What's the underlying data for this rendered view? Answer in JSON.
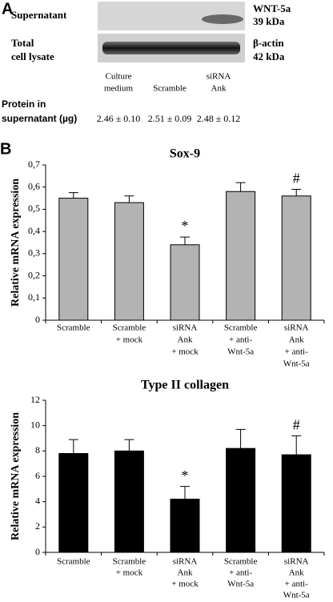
{
  "panel_a": {
    "label": "A",
    "rows": [
      {
        "label_lines": [
          "Supernatant"
        ],
        "marker_lines": [
          "WNT-5a",
          "39 kDa"
        ]
      },
      {
        "label_lines": [
          "Total",
          "cell lysate"
        ],
        "marker_lines": [
          "β-actin",
          "42 kDa"
        ]
      }
    ],
    "lanes": [
      [
        "Culture",
        "medium"
      ],
      [
        "Scramble"
      ],
      [
        "siRNA",
        "Ank"
      ]
    ],
    "protein_label": [
      "Protein in",
      "supernatant (µg)"
    ],
    "protein_values": [
      "2.46 ± 0.10",
      "2.51 ± 0.09",
      "2.48 ± 0.12"
    ]
  },
  "panel_b": {
    "label": "B"
  },
  "chart_data": [
    {
      "type": "bar",
      "title": "Sox-9",
      "y_label": "Relative mRNA expression",
      "categories": [
        [
          "Scramble"
        ],
        [
          "Scramble",
          "+ mock"
        ],
        [
          "siRNA",
          "Ank",
          "+ mock"
        ],
        [
          "Scramble",
          "+ anti-",
          "Wnt-5a"
        ],
        [
          "siRNA",
          "Ank",
          "+ anti-",
          "Wnt-5a"
        ]
      ],
      "values": [
        0.55,
        0.53,
        0.34,
        0.58,
        0.56
      ],
      "errors": [
        0.025,
        0.03,
        0.035,
        0.04,
        0.03
      ],
      "markers": [
        null,
        null,
        "*",
        null,
        "#"
      ],
      "color": "#b3b3b3",
      "ylim": [
        0,
        0.7
      ],
      "yticks": [
        0,
        {
          "value": 0.1,
          "label": "0,1"
        },
        {
          "value": 0.2,
          "label": "0,2"
        },
        {
          "value": 0.3,
          "label": "0,3"
        },
        {
          "value": 0.4,
          "label": "0,4"
        },
        {
          "value": 0.5,
          "label": "0,5"
        },
        {
          "value": 0.6,
          "label": "0,6"
        },
        {
          "value": 0.7,
          "label": "0,7"
        }
      ]
    },
    {
      "type": "bar",
      "title": "Type II collagen",
      "y_label": "Relative mRNA expression",
      "categories": [
        [
          "Scramble"
        ],
        [
          "Scramble",
          "+ mock"
        ],
        [
          "siRNA",
          "Ank",
          "+ mock"
        ],
        [
          "Scramble",
          "+ anti-",
          "Wnt-5a"
        ],
        [
          "siRNA",
          "Ank",
          "+ anti-",
          "Wnt-5a"
        ]
      ],
      "values": [
        7.8,
        8.0,
        4.2,
        8.2,
        7.7
      ],
      "errors": [
        1.1,
        0.9,
        1.0,
        1.5,
        1.5
      ],
      "markers": [
        null,
        null,
        "*",
        null,
        "#"
      ],
      "color": "#000000",
      "ylim": [
        0,
        12
      ],
      "yticks": [
        0,
        2,
        4,
        6,
        8,
        10,
        12
      ]
    }
  ]
}
